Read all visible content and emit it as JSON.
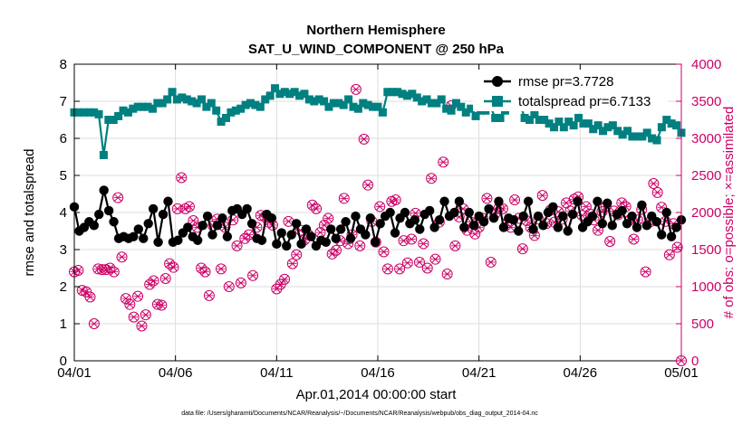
{
  "chart_data": {
    "type": "line",
    "title": "Northern Hemisphere",
    "subtitle": "SAT_U_WIND_COMPONENT @ 250 hPa",
    "xlabel": "Apr.01,2014 00:00:00 start",
    "ylabel_left": "rmse and totalspread",
    "ylabel_right": "# of obs: o=possible; ×=assimilated",
    "footer": "data file: /Users/gharamti/Documents/NCAR/Reanalysis/~/Documents/NCAR/Reanalysis/webpub/obs_diag_output_2014-04.nc",
    "x_ticks": [
      {
        "day": 0,
        "label": "04/01"
      },
      {
        "day": 5,
        "label": "04/06"
      },
      {
        "day": 10,
        "label": "04/11"
      },
      {
        "day": 15,
        "label": "04/16"
      },
      {
        "day": 20,
        "label": "04/21"
      },
      {
        "day": 25,
        "label": "04/26"
      },
      {
        "day": 30,
        "label": "05/01"
      }
    ],
    "xlim": [
      0,
      30
    ],
    "ylim_left": [
      0,
      8
    ],
    "yticks_left": [
      "0",
      "1",
      "2",
      "3",
      "4",
      "5",
      "6",
      "7",
      "8"
    ],
    "ylim_right": [
      0,
      4000
    ],
    "yticks_right": [
      "0",
      "500",
      "1000",
      "1500",
      "2000",
      "2500",
      "3000",
      "3500",
      "4000"
    ],
    "grid": true,
    "colors": {
      "rmse": "#000000",
      "spread": "#008080",
      "obs": "#cc0066"
    },
    "series": [
      {
        "name": "rmse pr=3.7728",
        "axis": "left",
        "values": [
          4.15,
          3.5,
          3.6,
          3.75,
          3.65,
          3.95,
          4.6,
          4.05,
          3.75,
          3.3,
          3.35,
          3.3,
          3.35,
          3.55,
          3.3,
          3.7,
          4.1,
          3.2,
          3.95,
          4.3,
          3.2,
          3.25,
          3.45,
          3.6,
          3.35,
          3.25,
          3.65,
          3.9,
          3.4,
          3.65,
          3.85,
          3.35,
          4.05,
          4.1,
          3.95,
          4.1,
          3.7,
          3.3,
          3.25,
          3.95,
          3.85,
          3.15,
          3.45,
          3.1,
          3.4,
          3.7,
          3.15,
          3.55,
          3.35,
          3.1,
          3.25,
          3.2,
          3.55,
          3.3,
          3.55,
          3.75,
          3.3,
          3.9,
          3.55,
          3.4,
          3.85,
          3.2,
          3.7,
          3.9,
          4.0,
          3.45,
          3.85,
          4.0,
          3.7,
          3.8,
          3.55,
          3.95,
          4.05,
          3.6,
          3.8,
          4.3,
          3.9,
          4.0,
          4.3,
          3.6,
          4.0,
          3.65,
          3.9,
          3.75,
          4.1,
          3.85,
          4.3,
          3.6,
          3.85,
          3.8,
          3.5,
          3.9,
          4.3,
          3.55,
          3.9,
          3.65,
          4.0,
          4.15,
          3.6,
          3.9,
          3.5,
          3.95,
          4.3,
          3.6,
          3.75,
          3.9,
          4.3,
          3.7,
          4.25,
          3.65,
          3.95,
          4.05,
          3.7,
          3.9,
          3.6,
          4.2,
          3.65,
          3.9,
          3.75,
          3.4,
          4.0,
          3.35,
          3.6,
          3.8
        ]
      },
      {
        "name": "totalspread pr=6.7133",
        "axis": "left",
        "values": [
          6.7,
          6.7,
          6.7,
          6.7,
          6.7,
          6.65,
          5.55,
          6.5,
          6.5,
          6.6,
          6.75,
          6.7,
          6.8,
          6.85,
          6.85,
          6.85,
          6.8,
          6.95,
          6.95,
          7.05,
          7.25,
          7.05,
          7.1,
          7.05,
          7.0,
          6.95,
          7.05,
          6.85,
          6.95,
          6.75,
          6.45,
          6.55,
          6.7,
          6.75,
          6.8,
          6.9,
          6.95,
          6.9,
          6.85,
          7.05,
          7.15,
          7.35,
          7.2,
          7.25,
          7.2,
          7.25,
          7.15,
          7.2,
          7.05,
          7.0,
          7.05,
          7.0,
          6.85,
          6.95,
          6.95,
          6.9,
          7.05,
          6.85,
          6.8,
          6.95,
          6.9,
          6.85,
          6.85,
          6.7,
          7.25,
          7.25,
          7.25,
          7.2,
          7.15,
          7.2,
          7.1,
          7.0,
          7.05,
          6.95,
          6.95,
          7.05,
          6.8,
          6.75,
          6.95,
          6.85,
          6.7,
          6.8,
          6.6,
          6.75,
          6.75,
          6.85,
          6.55,
          6.55,
          6.75,
          6.85,
          6.95,
          6.95,
          6.55,
          6.5,
          6.65,
          6.5,
          6.5,
          6.4,
          6.3,
          6.45,
          6.3,
          6.45,
          6.35,
          6.55,
          6.4,
          6.4,
          6.25,
          6.35,
          6.2,
          6.3,
          6.35,
          6.2,
          6.1,
          6.2,
          6.05,
          6.05,
          6.05,
          6.15,
          6.0,
          5.95,
          6.3,
          6.5,
          6.4,
          6.35,
          6.15
        ]
      },
      {
        "name": "observations possible (o) / assimilated (×)",
        "axis": "right",
        "values": [
          1200,
          1220,
          950,
          930,
          860,
          500,
          1240,
          1230,
          1230,
          1250,
          1200,
          2200,
          1400,
          840,
          760,
          590,
          870,
          470,
          620,
          1030,
          1080,
          760,
          750,
          1110,
          1310,
          1260,
          2050,
          2470,
          2050,
          2080,
          1890,
          1800,
          1250,
          1200,
          880,
          1820,
          1910,
          1240,
          1800,
          1000,
          1900,
          1550,
          1050,
          1650,
          1700,
          1150,
          1800,
          1960,
          1940,
          1870,
          1830,
          970,
          1030,
          1100,
          1880,
          1310,
          1430,
          1760,
          1630,
          1700,
          2100,
          2050,
          1730,
          1830,
          1920,
          1440,
          1490,
          1620,
          2190,
          1580,
          1700,
          3660,
          1550,
          2990,
          2370,
          1880,
          1600,
          2080,
          1470,
          1240,
          2150,
          2170,
          1240,
          1620,
          1320,
          1640,
          1990,
          1330,
          1580,
          1250,
          2460,
          1370,
          1870,
          2680,
          1170,
          3440,
          1550,
          1940,
          2050,
          1760,
          1870,
          1710,
          1800,
          1920,
          2190,
          1330,
          1980,
          2060,
          2050,
          1860,
          1800,
          2170,
          1920,
          1510,
          1890,
          1800,
          1690,
          1910,
          2230,
          1850,
          2030,
          1870,
          2010,
          1910,
          2130,
          2020,
          2180,
          2210,
          1960,
          2080,
          1980,
          1900,
          1760,
          2010,
          2080,
          1610,
          2020,
          1970,
          2130,
          2080,
          1900,
          1640,
          1900,
          2040,
          1200,
          1870,
          2390,
          2270,
          2070,
          1880,
          1430,
          1850,
          1530,
          0
        ]
      }
    ]
  }
}
